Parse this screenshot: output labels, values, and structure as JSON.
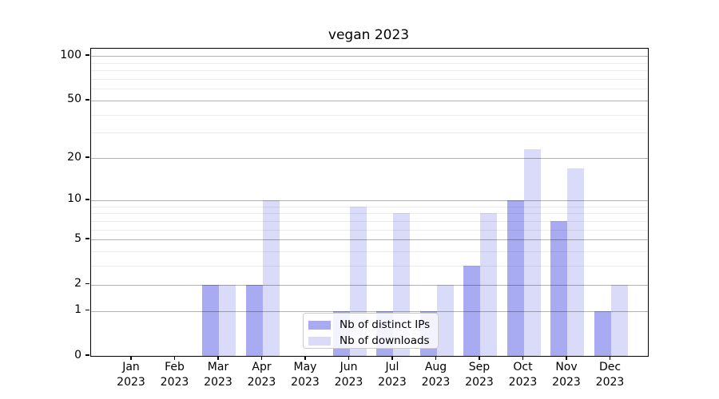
{
  "title": "vegan 2023",
  "chart_data": {
    "type": "bar",
    "title": "vegan 2023",
    "months": [
      "Jan",
      "Feb",
      "Mar",
      "Apr",
      "May",
      "Jun",
      "Jul",
      "Aug",
      "Sep",
      "Oct",
      "Nov",
      "Dec"
    ],
    "x_tick_year": "2023",
    "categories": [
      "Jan 2023",
      "Feb 2023",
      "Mar 2023",
      "Apr 2023",
      "May 2023",
      "Jun 2023",
      "Jul 2023",
      "Aug 2023",
      "Sep 2023",
      "Oct 2023",
      "Nov 2023",
      "Dec 2023"
    ],
    "series": [
      {
        "name": "Nb of distinct IPs",
        "color": "#a8abf1",
        "values": [
          0,
          0,
          2,
          2,
          0,
          1,
          1,
          1,
          3,
          10,
          7,
          1
        ]
      },
      {
        "name": "Nb of downloads",
        "color": "#d9dbf9",
        "values": [
          0,
          0,
          2,
          10,
          0,
          9,
          8,
          2,
          8,
          23,
          17,
          2
        ]
      }
    ],
    "yscale": "log1p",
    "ylim": [
      0,
      112
    ],
    "y_major_ticks": [
      0,
      1,
      2,
      5,
      10,
      20,
      50,
      100
    ],
    "y_minor_ticks": [
      3,
      4,
      6,
      7,
      8,
      9,
      30,
      40,
      60,
      70,
      80,
      90
    ],
    "grid": true,
    "legend": {
      "position": "lower center",
      "items": [
        "Nb of distinct IPs",
        "Nb of downloads"
      ]
    }
  }
}
